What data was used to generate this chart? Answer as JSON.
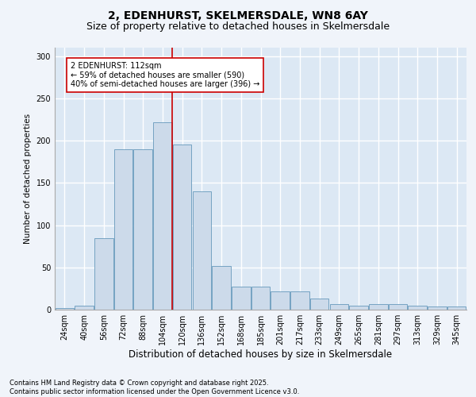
{
  "title1": "2, EDENHURST, SKELMERSDALE, WN8 6AY",
  "title2": "Size of property relative to detached houses in Skelmersdale",
  "xlabel": "Distribution of detached houses by size in Skelmersdale",
  "ylabel": "Number of detached properties",
  "categories": [
    "24sqm",
    "40sqm",
    "56sqm",
    "72sqm",
    "88sqm",
    "104sqm",
    "120sqm",
    "136sqm",
    "152sqm",
    "168sqm",
    "185sqm",
    "201sqm",
    "217sqm",
    "233sqm",
    "249sqm",
    "265sqm",
    "281sqm",
    "297sqm",
    "313sqm",
    "329sqm",
    "345sqm"
  ],
  "values": [
    2,
    5,
    85,
    190,
    190,
    222,
    195,
    140,
    52,
    27,
    27,
    22,
    22,
    13,
    7,
    5,
    7,
    7,
    5,
    4,
    4
  ],
  "bar_color": "#ccdaea",
  "bar_edge_color": "#6699bb",
  "background_color": "#dce8f4",
  "fig_background": "#f0f4fa",
  "grid_color": "#ffffff",
  "vline_x": 5.5,
  "vline_color": "#cc0000",
  "annotation_text": "2 EDENHURST: 112sqm\n← 59% of detached houses are smaller (590)\n40% of semi-detached houses are larger (396) →",
  "annotation_box_color": "#ffffff",
  "annotation_box_edge": "#cc0000",
  "ylim": [
    0,
    310
  ],
  "yticks": [
    0,
    50,
    100,
    150,
    200,
    250,
    300
  ],
  "footer1": "Contains HM Land Registry data © Crown copyright and database right 2025.",
  "footer2": "Contains public sector information licensed under the Open Government Licence v3.0.",
  "title1_fontsize": 10,
  "title2_fontsize": 9,
  "xlabel_fontsize": 8.5,
  "ylabel_fontsize": 7.5,
  "tick_fontsize": 7,
  "annotation_fontsize": 7,
  "footer_fontsize": 6
}
